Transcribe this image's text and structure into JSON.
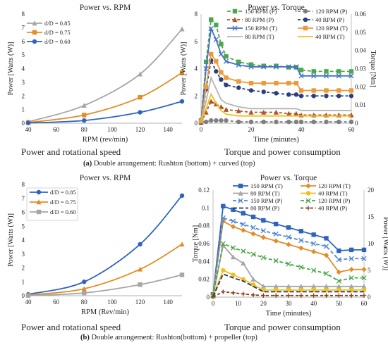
{
  "panel_a": {
    "caption_prefix": "(a)",
    "caption_text": " Double arrangement: Rushton (bottom) + curved (top)",
    "left_subtitle": "Power and rotational speed",
    "right_subtitle": "Torque and power consumption"
  },
  "panel_b": {
    "caption_prefix": "(b)",
    "caption_text": " Double arrangement: Rushton(bottom) + propeller (top)",
    "left_subtitle": "Power and rotational speed",
    "right_subtitle": "Torque and power consumption"
  },
  "chart_data": [
    {
      "id": "a_left",
      "type": "line",
      "title": "Power vs. RPM",
      "xlabel": "RPM (rev/min)",
      "ylabel": "Power  [Watts (W)]",
      "xlim": [
        40,
        150
      ],
      "xticks": [
        40,
        60,
        80,
        100,
        120,
        140
      ],
      "ylim": [
        0,
        8
      ],
      "yticks": [
        0,
        1,
        2,
        3,
        4,
        5,
        6,
        7,
        8
      ],
      "grid": false,
      "legend_position": "top-left",
      "series": [
        {
          "name": "d/D = 0.85",
          "color": "#a6a6a6",
          "marker": "triangle",
          "x": [
            40,
            80,
            120,
            150
          ],
          "values": [
            0.1,
            1.3,
            3.6,
            6.9
          ]
        },
        {
          "name": "d/D = 0.75",
          "color": "#e38d25",
          "marker": "square",
          "x": [
            40,
            80,
            120,
            150
          ],
          "values": [
            0.05,
            0.6,
            1.9,
            3.7
          ]
        },
        {
          "name": "d/D = 0.60",
          "color": "#2e64c0",
          "marker": "circle",
          "x": [
            40,
            80,
            120,
            150
          ],
          "values": [
            0.02,
            0.2,
            0.8,
            1.6
          ]
        }
      ]
    },
    {
      "id": "a_right",
      "type": "line",
      "title": "Power vs. Torque",
      "xlabel": "Time (minutes)",
      "ylabel": "Power  [Watts (W)]",
      "ylabel_right": "Torque  [Nm]",
      "xlim": [
        0,
        60
      ],
      "xticks": [
        0,
        20,
        40,
        60
      ],
      "ylim": [
        0,
        8
      ],
      "yticks": [
        0,
        2,
        4,
        6,
        8
      ],
      "ylim_right": [
        0,
        0.06
      ],
      "yticks_right": [
        "0",
        "0.01",
        "0.02",
        "0.03",
        "0.04",
        "0.05",
        "0.06"
      ],
      "grid": false,
      "legend_position": "top",
      "series": [
        {
          "name": "150 RPM (P)",
          "axis": "left",
          "color": "#4aa84a",
          "dash": "5,3",
          "marker": "square",
          "x": [
            0,
            2,
            4,
            6,
            8,
            10,
            15,
            20,
            25,
            30,
            35,
            38,
            40,
            45,
            50,
            55,
            60
          ],
          "values": [
            0.2,
            4.5,
            7.6,
            7.2,
            5.8,
            4.9,
            4.5,
            4.3,
            4.2,
            4.2,
            4.1,
            4.1,
            3.9,
            3.8,
            3.8,
            3.8,
            3.8
          ]
        },
        {
          "name": "120 RPM (P)",
          "axis": "left",
          "color": "#7f7f7f",
          "dash": "4,3",
          "marker": "circle",
          "x": [
            0,
            2,
            4,
            6,
            8,
            10,
            15,
            20,
            25,
            30,
            35,
            38,
            40,
            45,
            50,
            55,
            60
          ],
          "values": [
            0.1,
            0.1,
            0.2,
            0.2,
            0.2,
            0.2,
            0.1,
            0.1,
            0.1,
            0.1,
            0.1,
            0.1,
            0.1,
            0.1,
            0.1,
            0.1,
            0.1
          ]
        },
        {
          "name": "80 RPM (P)",
          "axis": "left",
          "color": "#b0522a",
          "dash": "4,3",
          "marker": "triangle",
          "x": [
            0,
            2,
            4,
            6,
            8,
            10,
            15,
            20,
            25,
            30,
            35,
            38,
            40,
            45,
            50,
            55,
            60
          ],
          "values": [
            0.05,
            0.8,
            1.6,
            1.4,
            1.2,
            1.0,
            0.9,
            0.8,
            0.8,
            0.8,
            0.7,
            0.7,
            0.6,
            0.6,
            0.6,
            0.6,
            0.6
          ]
        },
        {
          "name": "40 RPM (P)",
          "axis": "left",
          "color": "#2b3f7f",
          "dash": "4,3",
          "marker": "circle",
          "x": [
            0,
            2,
            4,
            6,
            8,
            10,
            15,
            20,
            25,
            30,
            35,
            38,
            40,
            45,
            50,
            55,
            60
          ],
          "values": [
            0.05,
            2.5,
            4.6,
            3.8,
            3.2,
            2.8,
            2.6,
            2.4,
            2.3,
            2.2,
            2.1,
            2.1,
            2.0,
            2.0,
            2.0,
            2.0,
            2.0
          ]
        },
        {
          "name": "150 RPM (T)",
          "axis": "right",
          "color": "#4472c4",
          "marker": "x",
          "x": [
            0,
            2,
            4,
            6,
            8,
            10,
            15,
            20,
            25,
            30,
            35,
            38,
            40,
            45,
            50,
            55,
            60
          ],
          "values": [
            0.001,
            0.03,
            0.052,
            0.046,
            0.038,
            0.034,
            0.032,
            0.031,
            0.031,
            0.031,
            0.031,
            0.031,
            0.026,
            0.026,
            0.026,
            0.026,
            0.026
          ]
        },
        {
          "name": "120 RPM (T)",
          "axis": "right",
          "color": "#ed9a3a",
          "marker": "square",
          "x": [
            0,
            2,
            4,
            6,
            8,
            10,
            15,
            20,
            25,
            30,
            35,
            38,
            40,
            45,
            50,
            55,
            60
          ],
          "values": [
            0.001,
            0.02,
            0.038,
            0.034,
            0.028,
            0.025,
            0.023,
            0.022,
            0.022,
            0.022,
            0.022,
            0.022,
            0.018,
            0.018,
            0.018,
            0.018,
            0.018
          ]
        },
        {
          "name": "80 RPM (T)",
          "axis": "right",
          "color": "#b4b4b4",
          "marker": "none",
          "x": [
            0,
            2,
            4,
            6,
            8,
            10,
            15,
            20,
            25,
            30,
            35,
            38,
            40,
            45,
            50,
            55,
            60
          ],
          "values": [
            0.001,
            0.012,
            0.025,
            0.019,
            0.013,
            0.011,
            0.009,
            0.008,
            0.008,
            0.008,
            0.008,
            0.008,
            0.007,
            0.007,
            0.007,
            0.007,
            0.007
          ]
        },
        {
          "name": "40 RPM (T)",
          "axis": "right",
          "color": "#f0c01e",
          "marker": "none",
          "x": [
            0,
            2,
            4,
            6,
            8,
            10,
            15,
            20,
            25,
            30,
            35,
            38,
            40,
            45,
            50,
            55,
            60
          ],
          "values": [
            0.001,
            0.008,
            0.016,
            0.011,
            0.007,
            0.005,
            0.004,
            0.004,
            0.004,
            0.004,
            0.004,
            0.004,
            0.004,
            0.004,
            0.004,
            0.004,
            0.004
          ]
        }
      ]
    },
    {
      "id": "b_left",
      "type": "line",
      "title": "Power vs. RPM",
      "xlabel": "RPM (Rev/min)",
      "ylabel": "Power  [Watts (W)]",
      "xlim": [
        40,
        150
      ],
      "xticks": [
        40,
        60,
        80,
        100,
        120,
        140
      ],
      "ylim": [
        0,
        8
      ],
      "yticks": [
        0,
        1,
        2,
        3,
        4,
        5,
        6,
        7,
        8
      ],
      "grid": false,
      "legend_position": "top-left",
      "series": [
        {
          "name": "d/D = 0.85",
          "color": "#2e64c0",
          "marker": "circle",
          "x": [
            40,
            80,
            120,
            150
          ],
          "values": [
            0.1,
            1.0,
            3.7,
            7.2
          ]
        },
        {
          "name": "d/D = 0.75",
          "color": "#e38d25",
          "marker": "triangle",
          "x": [
            40,
            80,
            120,
            150
          ],
          "values": [
            0.05,
            0.5,
            1.9,
            3.7
          ]
        },
        {
          "name": "d/D = 0.60",
          "color": "#a6a6a6",
          "marker": "square",
          "x": [
            40,
            80,
            120,
            150
          ],
          "values": [
            0.02,
            0.2,
            0.8,
            1.5
          ]
        }
      ]
    },
    {
      "id": "b_right",
      "type": "line",
      "title": "Power vs. Torque",
      "xlabel": "Time (minutes)",
      "ylabel": "Torque [Nm]",
      "ylabel_right": "Power  [Watts (W)]",
      "xlim": [
        0,
        60
      ],
      "xticks": [
        0,
        10,
        20,
        30,
        40,
        50,
        60
      ],
      "ylim": [
        0,
        0.12
      ],
      "yticks": [
        "0",
        "0.02",
        "0.04",
        "0.06",
        "0.08",
        "0.1",
        "0.12"
      ],
      "ylim_right": [
        0,
        20
      ],
      "yticks_right": [
        "0",
        "5",
        "10",
        "15",
        "20"
      ],
      "grid": false,
      "legend_position": "top",
      "series": [
        {
          "name": "150 RPM (T)",
          "axis": "left",
          "color": "#2e64c0",
          "marker": "square",
          "x": [
            0,
            4,
            8,
            12,
            16,
            20,
            25,
            30,
            35,
            40,
            45,
            50,
            55,
            60
          ],
          "values": [
            0.003,
            0.102,
            0.098,
            0.094,
            0.09,
            0.086,
            0.082,
            0.078,
            0.074,
            0.07,
            0.066,
            0.052,
            0.053,
            0.053
          ]
        },
        {
          "name": "120 RPM (T)",
          "axis": "left",
          "color": "#e38d25",
          "marker": "diamond",
          "x": [
            0,
            4,
            8,
            12,
            16,
            20,
            25,
            30,
            35,
            40,
            45,
            50,
            55,
            60
          ],
          "values": [
            0.003,
            0.085,
            0.079,
            0.075,
            0.071,
            0.067,
            0.063,
            0.059,
            0.055,
            0.051,
            0.047,
            0.028,
            0.031,
            0.031
          ]
        },
        {
          "name": "80 RPM (T)",
          "axis": "left",
          "color": "#a6a6a6",
          "marker": "triangle",
          "x": [
            0,
            4,
            8,
            12,
            16,
            20,
            25,
            30,
            35,
            40,
            45,
            50,
            55,
            60
          ],
          "values": [
            0.002,
            0.058,
            0.045,
            0.038,
            0.02,
            0.012,
            0.012,
            0.012,
            0.012,
            0.012,
            0.012,
            0.012,
            0.012,
            0.012
          ]
        },
        {
          "name": "40 RPM (T)",
          "axis": "left",
          "color": "#f0c01e",
          "marker": "circle",
          "x": [
            0,
            4,
            8,
            12,
            16,
            20,
            25,
            30,
            35,
            40,
            45,
            50,
            55,
            60
          ],
          "values": [
            0.001,
            0.03,
            0.025,
            0.02,
            0.014,
            0.008,
            0.008,
            0.008,
            0.008,
            0.008,
            0.008,
            0.008,
            0.008,
            0.008
          ]
        },
        {
          "name": "150 RPM (P)",
          "axis": "right",
          "color": "#4f86d6",
          "dash": "5,3",
          "marker": "x",
          "x": [
            0,
            4,
            8,
            12,
            16,
            20,
            25,
            30,
            35,
            40,
            45,
            50,
            55,
            60
          ],
          "values": [
            0.3,
            14.8,
            14.2,
            13.6,
            13.0,
            12.4,
            11.8,
            11.2,
            10.6,
            10.0,
            9.5,
            7.0,
            7.2,
            7.2
          ]
        },
        {
          "name": "120 RPM (P)",
          "axis": "right",
          "color": "#4aa84a",
          "dash": "5,3",
          "marker": "x",
          "x": [
            0,
            4,
            8,
            12,
            16,
            20,
            25,
            30,
            35,
            40,
            45,
            50,
            55,
            60
          ],
          "values": [
            0.2,
            10.0,
            9.2,
            8.6,
            8.0,
            7.4,
            6.8,
            6.2,
            5.6,
            5.0,
            4.4,
            3.0,
            3.6,
            3.6
          ]
        },
        {
          "name": "80 RPM (P)",
          "axis": "right",
          "color": "#1f2f5f",
          "dash": "6,3",
          "marker": "none",
          "x": [
            0,
            4,
            8,
            12,
            16,
            20,
            25,
            30,
            35,
            40,
            45,
            50,
            55,
            60
          ],
          "values": [
            0.1,
            4.3,
            3.6,
            3.0,
            2.0,
            1.0,
            1.0,
            1.0,
            1.0,
            1.0,
            1.0,
            1.0,
            1.0,
            1.0
          ]
        },
        {
          "name": "40 RPM (P)",
          "axis": "right",
          "color": "#8b3a1a",
          "dash": "4,3",
          "marker": "plus",
          "x": [
            0,
            4,
            8,
            12,
            16,
            20,
            25,
            30,
            35,
            40,
            45,
            50,
            55,
            60
          ],
          "values": [
            0.05,
            1.0,
            0.8,
            0.6,
            0.4,
            0.3,
            0.3,
            0.3,
            0.3,
            0.3,
            0.3,
            0.3,
            0.3,
            0.3
          ]
        }
      ]
    }
  ]
}
